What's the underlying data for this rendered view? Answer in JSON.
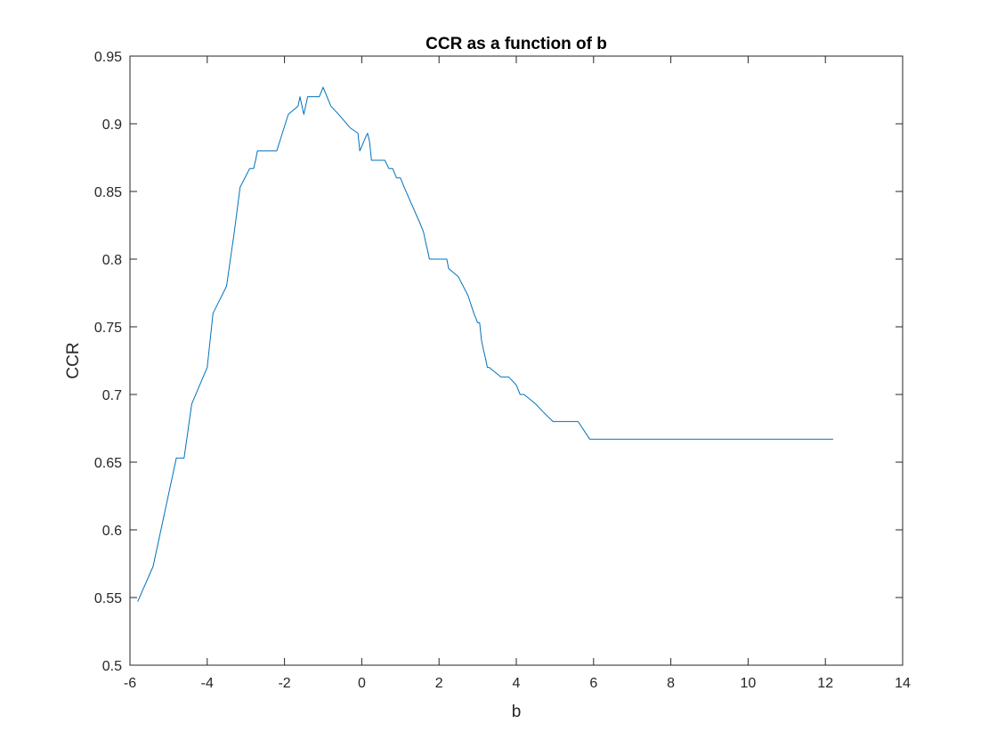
{
  "chart_data": {
    "type": "line",
    "title": "CCR as a function of b",
    "xlabel": "b",
    "ylabel": "CCR",
    "xlim": [
      -6,
      14
    ],
    "ylim": [
      0.5,
      0.95
    ],
    "xticks": [
      -6,
      -4,
      -2,
      0,
      2,
      4,
      6,
      8,
      10,
      12,
      14
    ],
    "yticks": [
      0.5,
      0.55,
      0.6,
      0.65,
      0.7,
      0.75,
      0.8,
      0.85,
      0.9,
      0.95
    ],
    "xtick_labels": [
      "-6",
      "-4",
      "-2",
      "0",
      "2",
      "4",
      "6",
      "8",
      "10",
      "12",
      "14"
    ],
    "ytick_labels": [
      "0.5",
      "0.55",
      "0.6",
      "0.65",
      "0.7",
      "0.75",
      "0.8",
      "0.85",
      "0.9",
      "0.95"
    ],
    "grid": false,
    "box": true,
    "series": [
      {
        "color": "#0072BD",
        "x": [
          -5.8,
          -5.4,
          -4.8,
          -4.6,
          -4.4,
          -4.0,
          -3.85,
          -3.5,
          -3.3,
          -3.15,
          -2.9,
          -2.8,
          -2.75,
          -2.7,
          -2.6,
          -2.2,
          -1.9,
          -1.65,
          -1.6,
          -1.5,
          -1.4,
          -1.2,
          -1.1,
          -1.0,
          -0.8,
          -0.6,
          -0.3,
          -0.1,
          -0.05,
          0.1,
          0.15,
          0.2,
          0.25,
          0.5,
          0.6,
          0.7,
          0.8,
          0.9,
          1.0,
          1.1,
          1.3,
          1.5,
          1.6,
          1.65,
          1.7,
          1.75,
          2.0,
          2.1,
          2.2,
          2.25,
          2.5,
          2.75,
          2.9,
          3.0,
          3.05,
          3.1,
          3.15,
          3.2,
          3.25,
          3.3,
          3.6,
          3.8,
          4.0,
          4.1,
          4.2,
          4.5,
          4.7,
          4.95,
          5.5,
          5.6,
          5.9,
          6.0,
          8.0,
          10.0,
          12.2
        ],
        "y": [
          0.547,
          0.573,
          0.653,
          0.653,
          0.693,
          0.72,
          0.76,
          0.78,
          0.82,
          0.853,
          0.867,
          0.867,
          0.873,
          0.88,
          0.88,
          0.88,
          0.907,
          0.913,
          0.92,
          0.907,
          0.92,
          0.92,
          0.92,
          0.927,
          0.913,
          0.907,
          0.897,
          0.893,
          0.88,
          0.89,
          0.893,
          0.887,
          0.873,
          0.873,
          0.873,
          0.867,
          0.867,
          0.86,
          0.86,
          0.853,
          0.84,
          0.827,
          0.82,
          0.813,
          0.807,
          0.8,
          0.8,
          0.8,
          0.8,
          0.793,
          0.787,
          0.773,
          0.76,
          0.753,
          0.753,
          0.74,
          0.733,
          0.727,
          0.72,
          0.72,
          0.713,
          0.713,
          0.707,
          0.7,
          0.7,
          0.693,
          0.687,
          0.68,
          0.68,
          0.68,
          0.667,
          0.667,
          0.667,
          0.667,
          0.667
        ]
      }
    ]
  }
}
